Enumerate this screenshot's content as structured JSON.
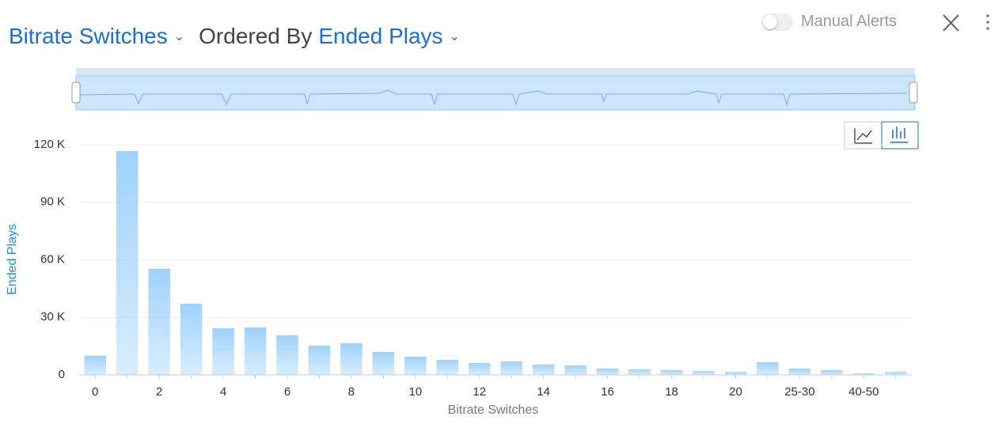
{
  "header": {
    "metric": "Bitrate Switches",
    "connector": "Ordered By",
    "order": "Ended Plays",
    "toggle": "Manual Alerts"
  },
  "chart_data": {
    "type": "bar",
    "xlabel": "Bitrate Switches",
    "ylabel": "Ended Plays",
    "categories": [
      "0",
      null,
      "2",
      null,
      "4",
      null,
      "6",
      null,
      "8",
      null,
      "10",
      null,
      "12",
      null,
      "14",
      null,
      "16",
      null,
      "18",
      null,
      "20",
      null,
      "25-30",
      null,
      "40-50",
      null
    ],
    "values": [
      10000,
      116700,
      55300,
      37100,
      24300,
      24700,
      20600,
      15300,
      16500,
      12000,
      9500,
      7800,
      6200,
      7000,
      5400,
      4900,
      3300,
      2900,
      2500,
      2100,
      1600,
      6600,
      3300,
      2500,
      800,
      1600
    ],
    "color": "#9fd2fb",
    "ylim": [
      0,
      120000
    ],
    "yticks": [
      0,
      {
        "value": 30000,
        "label": "30 K"
      },
      {
        "value": 60000,
        "label": "60 K"
      },
      {
        "value": 90000,
        "label": "90 K"
      },
      {
        "value": 120000,
        "label": "120 K"
      }
    ],
    "grid": true
  }
}
